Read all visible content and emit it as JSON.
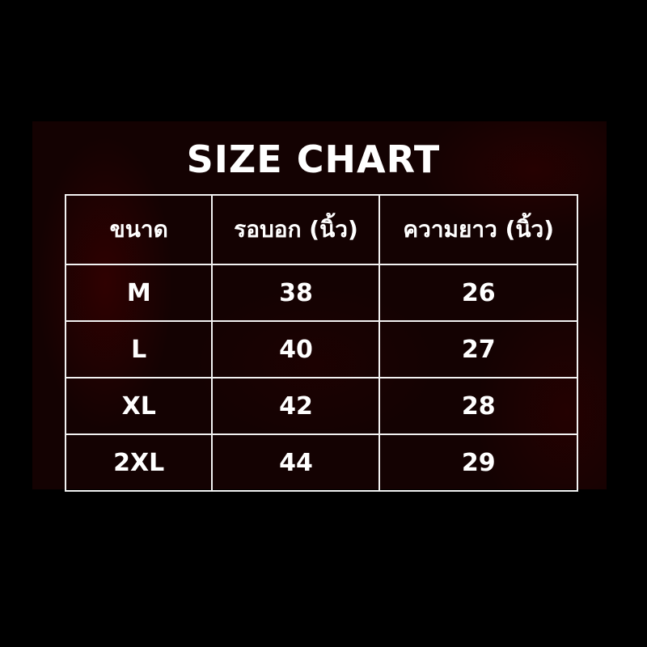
{
  "title": "SIZE CHART",
  "table": {
    "headers": [
      "ขนาด",
      "รอบอก (นิ้ว)",
      "ความยาว (นิ้ว)"
    ],
    "rows": [
      [
        "M",
        "38",
        "26"
      ],
      [
        "L",
        "40",
        "27"
      ],
      [
        "XL",
        "42",
        "28"
      ],
      [
        "2XL",
        "44",
        "29"
      ]
    ]
  },
  "colors": {
    "background": "#000000",
    "panel": "#140202",
    "text": "#ffffff"
  }
}
